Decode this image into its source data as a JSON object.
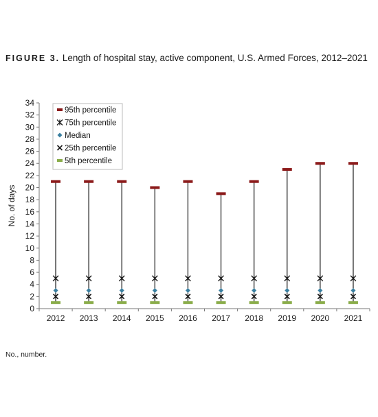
{
  "figure_label": "FIGURE 3.",
  "title": "Length of hospital stay, active component, U.S. Armed Forces, 2012–2021",
  "footnote": "No., number.",
  "chart_data": {
    "type": "scatter",
    "title": "Length of hospital stay, active component, U.S. Armed Forces, 2012–2021",
    "xlabel": "",
    "ylabel": "No. of days",
    "categories": [
      "2012",
      "2013",
      "2014",
      "2015",
      "2016",
      "2017",
      "2018",
      "2019",
      "2020",
      "2021"
    ],
    "ylim": [
      0,
      34
    ],
    "yticks": [
      0,
      2,
      4,
      6,
      8,
      10,
      12,
      14,
      16,
      18,
      20,
      22,
      24,
      26,
      28,
      30,
      32,
      34
    ],
    "grid": false,
    "legend_position": "top-left",
    "series": [
      {
        "name": "95th percentile",
        "marker": "dash",
        "color": "#8b1a1a",
        "values": [
          21,
          21,
          21,
          20,
          21,
          19,
          21,
          23,
          24,
          24
        ]
      },
      {
        "name": "75th percentile",
        "marker": "star",
        "color": "#1a1a1a",
        "values": [
          5,
          5,
          5,
          5,
          5,
          5,
          5,
          5,
          5,
          5
        ]
      },
      {
        "name": "Median",
        "marker": "diamond",
        "color": "#3a7fa0",
        "values": [
          3,
          3,
          3,
          3,
          3,
          3,
          3,
          3,
          3,
          3
        ]
      },
      {
        "name": "25th percentile",
        "marker": "x",
        "color": "#1a1a1a",
        "values": [
          2,
          2,
          2,
          2,
          2,
          2,
          2,
          2,
          2,
          2
        ]
      },
      {
        "name": "5th percentile",
        "marker": "dash",
        "color": "#8aad4a",
        "values": [
          1,
          1,
          1,
          1,
          1,
          1,
          1,
          1,
          1,
          1
        ]
      }
    ]
  }
}
